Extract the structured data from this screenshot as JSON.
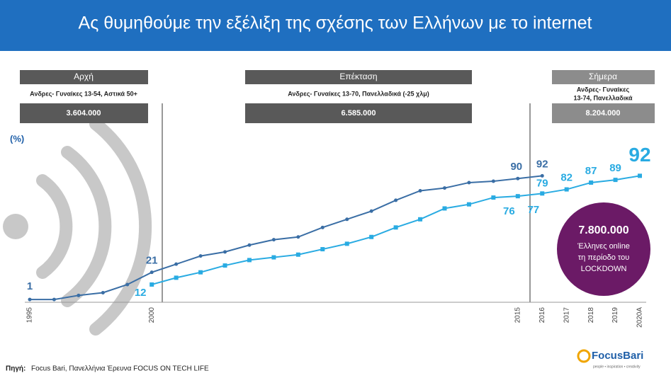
{
  "chart_data": {
    "type": "line",
    "title": "Ας θυμηθούμε την εξέλιξη της σχέσης των Ελλήνων με το internet",
    "y_label": "(%)",
    "categories": [
      "1995",
      null,
      null,
      null,
      null,
      "2000",
      null,
      null,
      null,
      null,
      null,
      null,
      null,
      null,
      null,
      null,
      null,
      null,
      null,
      null,
      "2015",
      "2016",
      "2017",
      "2018",
      "2019",
      "2020A"
    ],
    "ylim": [
      0,
      100
    ],
    "series": [
      {
        "name": "Ανδρες- Γυναίκες 13-70",
        "color": "#3a6ea5",
        "values": [
          1,
          1,
          4,
          6,
          12,
          21,
          27,
          33,
          36,
          41,
          45,
          47,
          54,
          60,
          66,
          74,
          81,
          83,
          87,
          88,
          90,
          92,
          null,
          null,
          null,
          null
        ],
        "value_labels": [
          1,
          null,
          null,
          null,
          null,
          21,
          null,
          null,
          null,
          null,
          null,
          null,
          null,
          null,
          null,
          null,
          null,
          null,
          null,
          null,
          90,
          92,
          null,
          null,
          null,
          null
        ]
      },
      {
        "name": "Ανδρες- Γυναίκες 13-74",
        "color": "#29abe2",
        "values": [
          null,
          null,
          null,
          null,
          null,
          12,
          17,
          21,
          26,
          30,
          32,
          34,
          38,
          42,
          47,
          54,
          60,
          68,
          71,
          76,
          77,
          79,
          82,
          87,
          89,
          92
        ],
        "value_labels": [
          null,
          null,
          null,
          null,
          null,
          12,
          null,
          null,
          null,
          null,
          null,
          null,
          null,
          null,
          null,
          null,
          null,
          null,
          null,
          76,
          77,
          79,
          82,
          87,
          89,
          92
        ]
      }
    ],
    "periods": [
      {
        "title": "Αρχή",
        "subtitle": "Ανδρες- Γυναίκες 13-54, Αστικά 50+",
        "total": "3.604.000"
      },
      {
        "title": "Επέκταση",
        "subtitle": "Ανδρες- Γυναίκες 13-70, Πανελλαδικά (-25 χλμ)",
        "total": "6.585.000"
      },
      {
        "title": "Σήμερα",
        "subtitle": [
          "Ανδρες- Γυναίκες",
          "13-74, Πανελλαδικά"
        ],
        "total": "8.204.000"
      }
    ],
    "callout": [
      "7.800.000",
      "Έλληνες online",
      "τη περίοδο του",
      "LOCKDOWN"
    ],
    "source_label": "Πηγή:",
    "source": "Focus Bari, Πανελλήνια Έρευνα FOCUS ON TECH LIFE",
    "logo": "FocusBari",
    "logo_tagline": "people • inspiration • creativity"
  }
}
